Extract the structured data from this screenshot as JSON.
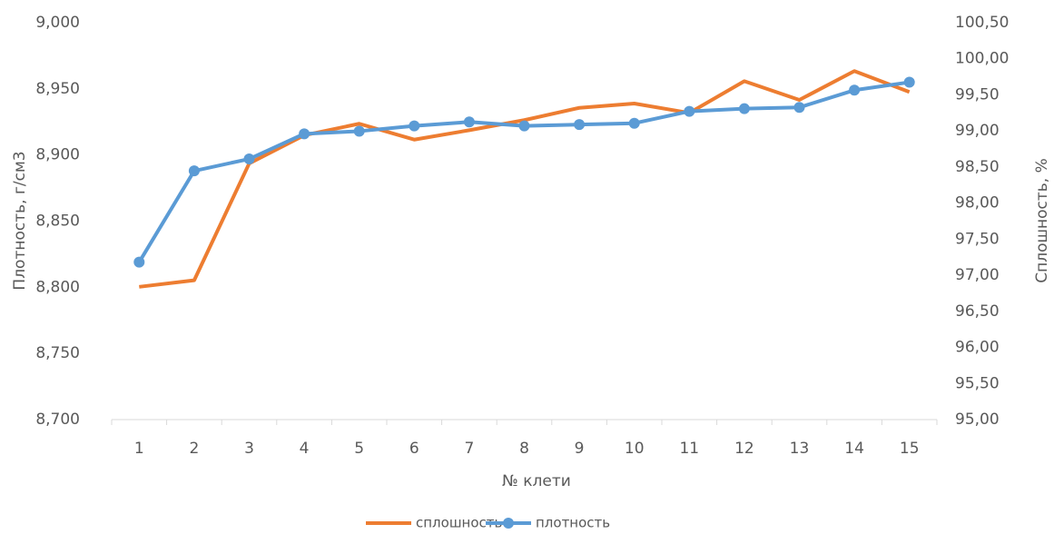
{
  "chart_data": {
    "type": "line",
    "x_label": "№ клети",
    "y_label": "Плотность, г/см3",
    "y2_label": "Сплошность, %",
    "categories": [
      "1",
      "2",
      "3",
      "4",
      "5",
      "6",
      "7",
      "8",
      "9",
      "10",
      "11",
      "12",
      "13",
      "14",
      "15"
    ],
    "series": [
      {
        "name": "сплошность",
        "color": "#ed7d31",
        "axis": "y2",
        "marker": false,
        "values": [
          96.84,
          96.93,
          98.55,
          98.94,
          99.1,
          98.88,
          99.01,
          99.15,
          99.32,
          99.38,
          99.25,
          99.69,
          99.43,
          99.83,
          99.54
        ]
      },
      {
        "name": "плотность",
        "color": "#5b9bd5",
        "axis": "y",
        "marker": true,
        "values": [
          8.819,
          8.888,
          8.897,
          8.916,
          8.918,
          8.922,
          8.925,
          8.922,
          8.923,
          8.924,
          8.933,
          8.935,
          8.936,
          8.949,
          8.955
        ]
      }
    ],
    "ylim": [
      8.7,
      9.0
    ],
    "yticks": [
      {
        "value": 8.7,
        "label": "8,700"
      },
      {
        "value": 8.75,
        "label": "8,750"
      },
      {
        "value": 8.8,
        "label": "8,800"
      },
      {
        "value": 8.85,
        "label": "8,850"
      },
      {
        "value": 8.9,
        "label": "8,900"
      },
      {
        "value": 8.95,
        "label": "8,950"
      },
      {
        "value": 9.0,
        "label": "9,000"
      }
    ],
    "y2lim": [
      95,
      100.5
    ],
    "y2ticks": [
      {
        "value": 95,
        "label": "95,00"
      },
      {
        "value": 95.5,
        "label": "95,50"
      },
      {
        "value": 96,
        "label": "96,00"
      },
      {
        "value": 96.5,
        "label": "96,50"
      },
      {
        "value": 97,
        "label": "97,00"
      },
      {
        "value": 97.5,
        "label": "97,50"
      },
      {
        "value": 98,
        "label": "98,00"
      },
      {
        "value": 98.5,
        "label": "98,50"
      },
      {
        "value": 99,
        "label": "99,00"
      },
      {
        "value": 99.5,
        "label": "99,50"
      },
      {
        "value": 100,
        "label": "100,00"
      },
      {
        "value": 100.5,
        "label": "100,50"
      }
    ],
    "grid": false,
    "legend": "bottom"
  }
}
